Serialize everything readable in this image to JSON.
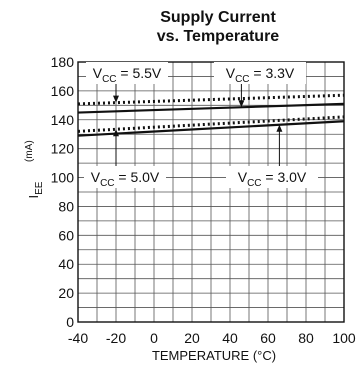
{
  "chart_data": {
    "type": "line",
    "title": "Supply Current",
    "subtitle": "vs. Temperature",
    "xlabel": "TEMPERATURE (°C)",
    "ylabel_main": "I",
    "ylabel_sub": "EE",
    "ylabel_unit": "(mA)",
    "xlim": [
      -40,
      100
    ],
    "ylim": [
      0,
      180
    ],
    "x_ticks": [
      -40,
      -20,
      0,
      20,
      40,
      60,
      80,
      100
    ],
    "y_ticks": [
      0,
      20,
      40,
      60,
      80,
      100,
      120,
      140,
      160,
      180
    ],
    "grid": true,
    "series": [
      {
        "name": "VCC = 5.5V",
        "label_main": "V",
        "label_sub": "CC",
        "label_rest": " = 5.5V",
        "style": "dotted",
        "x": [
          -40,
          100
        ],
        "y": [
          151,
          157
        ]
      },
      {
        "name": "VCC = 3.3V",
        "label_main": "V",
        "label_sub": "CC",
        "label_rest": " = 3.3V",
        "style": "solid",
        "x": [
          -40,
          100
        ],
        "y": [
          145,
          151
        ]
      },
      {
        "name": "VCC = 5.0V",
        "label_main": "V",
        "label_sub": "CC",
        "label_rest": " = 5.0V",
        "style": "dotted",
        "x": [
          -40,
          100
        ],
        "y": [
          132,
          142
        ]
      },
      {
        "name": "VCC = 3.0V",
        "label_main": "V",
        "label_sub": "CC",
        "label_rest": " = 3.0V",
        "style": "solid",
        "x": [
          -40,
          100
        ],
        "y": [
          129,
          139
        ]
      }
    ]
  }
}
